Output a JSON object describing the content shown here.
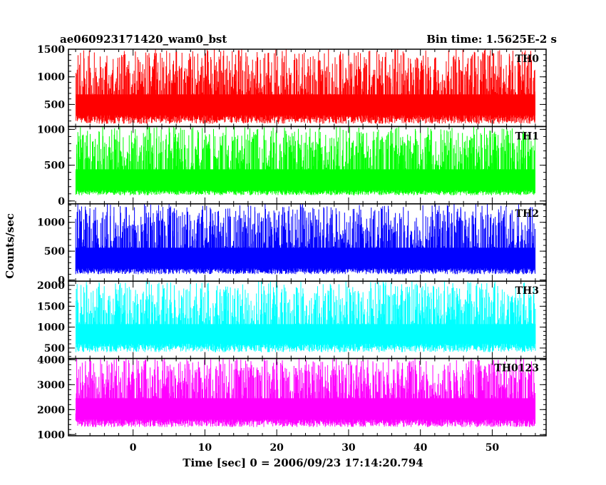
{
  "chart_data": {
    "type": "line",
    "title": "ae060923171420_wam0_bst",
    "subtitle": "Bin time: 1.5625E-2 s",
    "xlabel": "Time [sec] 0 = 2006/09/23 17:14:20.794",
    "ylabel": "Counts/sec",
    "xlim": [
      -9,
      57.5
    ],
    "x_data_range": [
      -8,
      56
    ],
    "xticks": [
      0,
      10,
      20,
      30,
      40,
      50
    ],
    "grid": false,
    "legend": "none",
    "panels": [
      {
        "name": "TH0",
        "color": "#ff0000",
        "ylim": [
          100,
          1500
        ],
        "yticks": [
          500,
          1000,
          1500
        ],
        "baseline": 150,
        "typical_range": [
          300,
          1150
        ],
        "peak_range": [
          1150,
          1500
        ]
      },
      {
        "name": "TH1",
        "color": "#00ff00",
        "ylim": [
          -40,
          1040
        ],
        "yticks": [
          0,
          500,
          1000
        ],
        "baseline": 80,
        "typical_range": [
          150,
          800
        ],
        "peak_range": [
          800,
          1040
        ]
      },
      {
        "name": "TH2",
        "color": "#0000ff",
        "ylim": [
          -20,
          1320
        ],
        "yticks": [
          0,
          500,
          1000
        ],
        "baseline": 100,
        "typical_range": [
          200,
          1000
        ],
        "peak_range": [
          1000,
          1320
        ]
      },
      {
        "name": "TH3",
        "color": "#00ffff",
        "ylim": [
          250,
          2100
        ],
        "yticks": [
          500,
          1000,
          1500,
          2000
        ],
        "baseline": 400,
        "typical_range": [
          600,
          1650
        ],
        "peak_range": [
          1650,
          2100
        ]
      },
      {
        "name": "TH0123",
        "color": "#ff00ff",
        "ylim": [
          950,
          4050
        ],
        "yticks": [
          1000,
          2000,
          3000,
          4000
        ],
        "baseline": 1300,
        "typical_range": [
          1600,
          3500
        ],
        "peak_range": [
          3500,
          4050
        ]
      }
    ]
  }
}
